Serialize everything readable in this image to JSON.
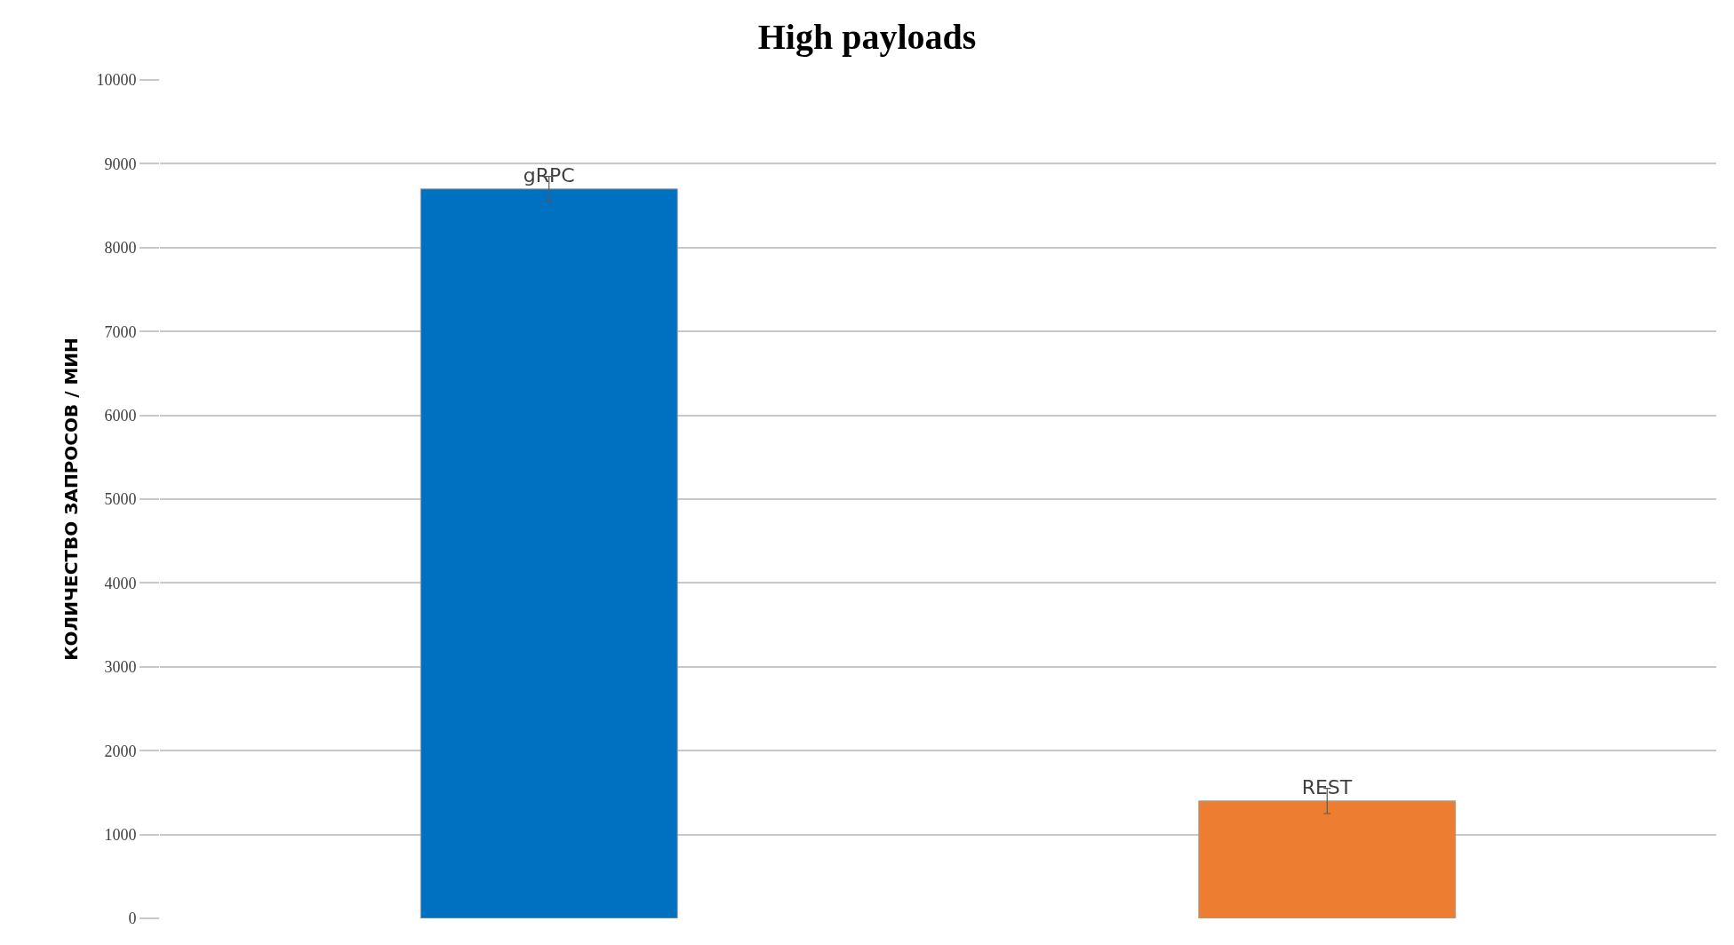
{
  "chart_data": {
    "type": "bar",
    "title": "High payloads",
    "ylabel": "КОЛИЧЕСТВО ЗАПРОСОВ / МИН",
    "categories": [
      "gRPC",
      "REST"
    ],
    "values": [
      8700,
      1400
    ],
    "colors": [
      "#0070c0",
      "#ed7d31"
    ],
    "errors": [
      150,
      150
    ],
    "ylim": [
      0,
      10000
    ],
    "yticks": [
      0,
      1000,
      2000,
      3000,
      4000,
      5000,
      6000,
      7000,
      8000,
      9000,
      10000
    ],
    "grid": "y",
    "tick_labels": "y"
  }
}
